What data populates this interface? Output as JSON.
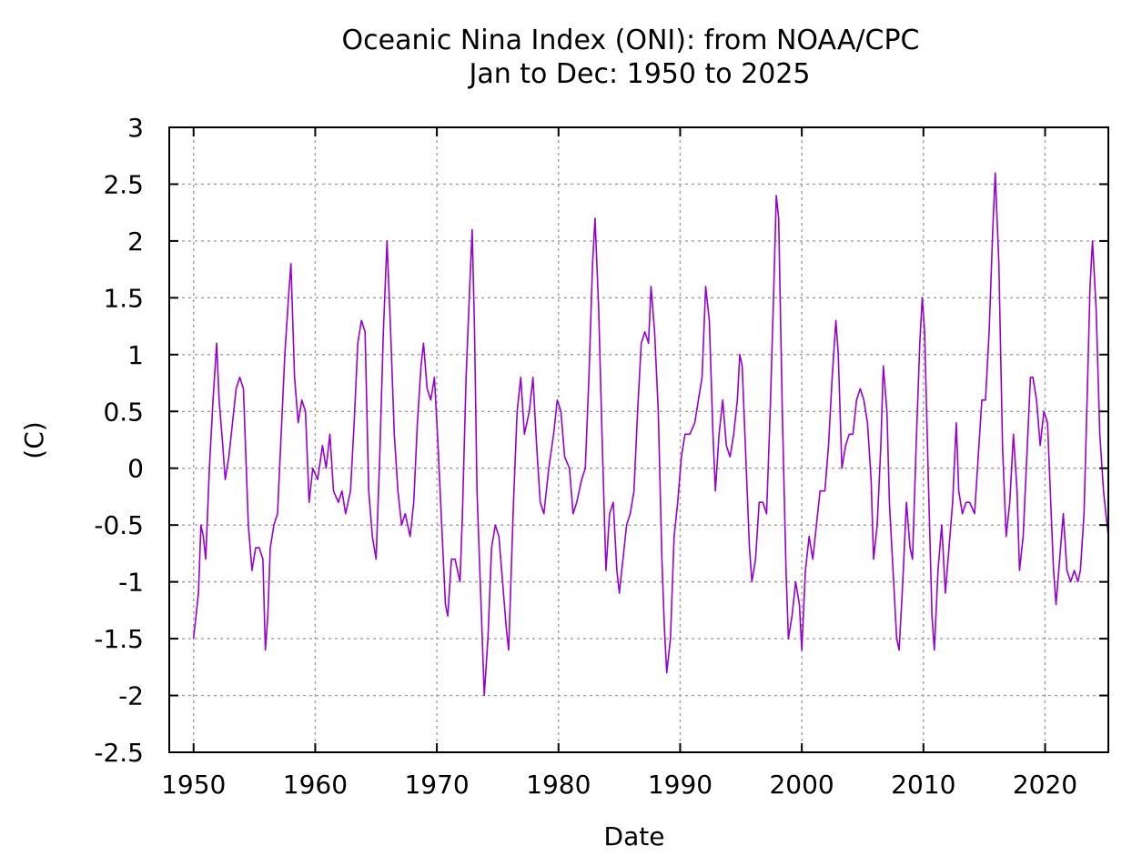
{
  "chart_data": {
    "type": "line",
    "title": "Oceanic Nina Index (ONI): from NOAA/CPC",
    "subtitle": "Jan to Dec: 1950 to 2025",
    "xlabel": "Date",
    "ylabel": "(C)",
    "xlim": [
      1948,
      2025.2
    ],
    "ylim": [
      -2.5,
      3
    ],
    "xticks": [
      1950,
      1960,
      1970,
      1980,
      1990,
      2000,
      2010,
      2020
    ],
    "yticks": [
      -2.5,
      -2,
      -1.5,
      -1,
      -0.5,
      0,
      0.5,
      1,
      1.5,
      2,
      2.5,
      3
    ],
    "grid": true,
    "legend": "none",
    "series": [
      {
        "name": "ONI",
        "color": "#9400d3",
        "points": [
          [
            1950.0,
            -1.5
          ],
          [
            1950.4,
            -1.1
          ],
          [
            1950.6,
            -0.5
          ],
          [
            1950.8,
            -0.6
          ],
          [
            1951.0,
            -0.8
          ],
          [
            1951.3,
            0.0
          ],
          [
            1951.6,
            0.6
          ],
          [
            1951.9,
            1.1
          ],
          [
            1952.1,
            0.6
          ],
          [
            1952.4,
            0.2
          ],
          [
            1952.6,
            -0.1
          ],
          [
            1952.9,
            0.1
          ],
          [
            1953.2,
            0.4
          ],
          [
            1953.5,
            0.7
          ],
          [
            1953.8,
            0.8
          ],
          [
            1954.1,
            0.7
          ],
          [
            1954.3,
            0.1
          ],
          [
            1954.5,
            -0.5
          ],
          [
            1954.8,
            -0.9
          ],
          [
            1955.1,
            -0.7
          ],
          [
            1955.4,
            -0.7
          ],
          [
            1955.7,
            -0.8
          ],
          [
            1955.9,
            -1.6
          ],
          [
            1956.1,
            -1.3
          ],
          [
            1956.3,
            -0.7
          ],
          [
            1956.6,
            -0.5
          ],
          [
            1956.9,
            -0.4
          ],
          [
            1957.2,
            0.3
          ],
          [
            1957.5,
            1.0
          ],
          [
            1957.8,
            1.5
          ],
          [
            1958.0,
            1.8
          ],
          [
            1958.3,
            0.8
          ],
          [
            1958.6,
            0.4
          ],
          [
            1958.9,
            0.6
          ],
          [
            1959.2,
            0.5
          ],
          [
            1959.5,
            -0.3
          ],
          [
            1959.8,
            0.0
          ],
          [
            1960.2,
            -0.1
          ],
          [
            1960.6,
            0.2
          ],
          [
            1960.9,
            0.0
          ],
          [
            1961.2,
            0.3
          ],
          [
            1961.5,
            -0.2
          ],
          [
            1961.9,
            -0.3
          ],
          [
            1962.2,
            -0.2
          ],
          [
            1962.5,
            -0.4
          ],
          [
            1962.9,
            -0.2
          ],
          [
            1963.2,
            0.4
          ],
          [
            1963.5,
            1.1
          ],
          [
            1963.8,
            1.3
          ],
          [
            1964.1,
            1.2
          ],
          [
            1964.4,
            -0.2
          ],
          [
            1964.7,
            -0.6
          ],
          [
            1965.0,
            -0.8
          ],
          [
            1965.3,
            0.1
          ],
          [
            1965.6,
            1.2
          ],
          [
            1965.9,
            2.0
          ],
          [
            1966.2,
            1.2
          ],
          [
            1966.5,
            0.3
          ],
          [
            1966.8,
            -0.2
          ],
          [
            1967.1,
            -0.5
          ],
          [
            1967.4,
            -0.4
          ],
          [
            1967.8,
            -0.6
          ],
          [
            1968.1,
            -0.3
          ],
          [
            1968.4,
            0.4
          ],
          [
            1968.7,
            0.9
          ],
          [
            1968.9,
            1.1
          ],
          [
            1969.2,
            0.7
          ],
          [
            1969.5,
            0.6
          ],
          [
            1969.8,
            0.8
          ],
          [
            1970.1,
            0.2
          ],
          [
            1970.4,
            -0.5
          ],
          [
            1970.7,
            -1.2
          ],
          [
            1970.9,
            -1.3
          ],
          [
            1971.2,
            -0.8
          ],
          [
            1971.5,
            -0.8
          ],
          [
            1971.9,
            -1.0
          ],
          [
            1972.1,
            -0.4
          ],
          [
            1972.4,
            0.8
          ],
          [
            1972.7,
            1.6
          ],
          [
            1972.9,
            2.1
          ],
          [
            1973.1,
            1.2
          ],
          [
            1973.3,
            -0.2
          ],
          [
            1973.6,
            -1.1
          ],
          [
            1973.9,
            -2.0
          ],
          [
            1974.2,
            -1.5
          ],
          [
            1974.5,
            -0.7
          ],
          [
            1974.8,
            -0.5
          ],
          [
            1975.1,
            -0.6
          ],
          [
            1975.4,
            -1.0
          ],
          [
            1975.7,
            -1.4
          ],
          [
            1975.9,
            -1.6
          ],
          [
            1976.3,
            -0.3
          ],
          [
            1976.6,
            0.5
          ],
          [
            1976.9,
            0.8
          ],
          [
            1977.2,
            0.3
          ],
          [
            1977.6,
            0.5
          ],
          [
            1977.9,
            0.8
          ],
          [
            1978.2,
            0.2
          ],
          [
            1978.5,
            -0.3
          ],
          [
            1978.8,
            -0.4
          ],
          [
            1979.2,
            0.0
          ],
          [
            1979.6,
            0.3
          ],
          [
            1979.9,
            0.6
          ],
          [
            1980.2,
            0.5
          ],
          [
            1980.5,
            0.1
          ],
          [
            1980.9,
            0.0
          ],
          [
            1981.2,
            -0.4
          ],
          [
            1981.5,
            -0.3
          ],
          [
            1981.9,
            -0.1
          ],
          [
            1982.2,
            0.0
          ],
          [
            1982.5,
            0.8
          ],
          [
            1982.8,
            1.8
          ],
          [
            1983.0,
            2.2
          ],
          [
            1983.3,
            1.4
          ],
          [
            1983.6,
            0.2
          ],
          [
            1983.9,
            -0.9
          ],
          [
            1984.2,
            -0.4
          ],
          [
            1984.5,
            -0.3
          ],
          [
            1984.8,
            -0.9
          ],
          [
            1985.0,
            -1.1
          ],
          [
            1985.3,
            -0.8
          ],
          [
            1985.6,
            -0.5
          ],
          [
            1985.9,
            -0.4
          ],
          [
            1986.2,
            -0.2
          ],
          [
            1986.5,
            0.5
          ],
          [
            1986.8,
            1.1
          ],
          [
            1987.1,
            1.2
          ],
          [
            1987.4,
            1.1
          ],
          [
            1987.6,
            1.6
          ],
          [
            1987.9,
            1.2
          ],
          [
            1988.2,
            0.5
          ],
          [
            1988.5,
            -0.8
          ],
          [
            1988.7,
            -1.4
          ],
          [
            1988.9,
            -1.8
          ],
          [
            1989.2,
            -1.5
          ],
          [
            1989.5,
            -0.6
          ],
          [
            1989.8,
            -0.3
          ],
          [
            1990.1,
            0.1
          ],
          [
            1990.4,
            0.3
          ],
          [
            1990.8,
            0.3
          ],
          [
            1991.2,
            0.4
          ],
          [
            1991.5,
            0.6
          ],
          [
            1991.8,
            0.8
          ],
          [
            1992.1,
            1.6
          ],
          [
            1992.4,
            1.3
          ],
          [
            1992.7,
            0.3
          ],
          [
            1992.9,
            -0.2
          ],
          [
            1993.2,
            0.3
          ],
          [
            1993.5,
            0.6
          ],
          [
            1993.8,
            0.2
          ],
          [
            1994.1,
            0.1
          ],
          [
            1994.4,
            0.3
          ],
          [
            1994.7,
            0.6
          ],
          [
            1994.9,
            1.0
          ],
          [
            1995.1,
            0.9
          ],
          [
            1995.4,
            0.1
          ],
          [
            1995.7,
            -0.7
          ],
          [
            1995.9,
            -1.0
          ],
          [
            1996.2,
            -0.8
          ],
          [
            1996.5,
            -0.3
          ],
          [
            1996.8,
            -0.3
          ],
          [
            1997.1,
            -0.4
          ],
          [
            1997.4,
            0.5
          ],
          [
            1997.7,
            1.6
          ],
          [
            1997.9,
            2.4
          ],
          [
            1998.1,
            2.2
          ],
          [
            1998.4,
            0.5
          ],
          [
            1998.7,
            -0.9
          ],
          [
            1998.9,
            -1.5
          ],
          [
            1999.2,
            -1.3
          ],
          [
            1999.5,
            -1.0
          ],
          [
            1999.8,
            -1.2
          ],
          [
            2000.0,
            -1.6
          ],
          [
            2000.3,
            -0.9
          ],
          [
            2000.6,
            -0.6
          ],
          [
            2000.9,
            -0.8
          ],
          [
            2001.2,
            -0.5
          ],
          [
            2001.5,
            -0.2
          ],
          [
            2001.9,
            -0.2
          ],
          [
            2002.2,
            0.2
          ],
          [
            2002.5,
            0.8
          ],
          [
            2002.8,
            1.3
          ],
          [
            2003.0,
            1.0
          ],
          [
            2003.3,
            0.0
          ],
          [
            2003.6,
            0.2
          ],
          [
            2003.9,
            0.3
          ],
          [
            2004.2,
            0.3
          ],
          [
            2004.5,
            0.6
          ],
          [
            2004.8,
            0.7
          ],
          [
            2005.1,
            0.6
          ],
          [
            2005.4,
            0.4
          ],
          [
            2005.7,
            -0.1
          ],
          [
            2005.9,
            -0.8
          ],
          [
            2006.2,
            -0.5
          ],
          [
            2006.5,
            0.2
          ],
          [
            2006.7,
            0.9
          ],
          [
            2007.0,
            0.5
          ],
          [
            2007.2,
            -0.3
          ],
          [
            2007.5,
            -0.9
          ],
          [
            2007.8,
            -1.5
          ],
          [
            2008.0,
            -1.6
          ],
          [
            2008.3,
            -1.0
          ],
          [
            2008.6,
            -0.3
          ],
          [
            2008.9,
            -0.7
          ],
          [
            2009.1,
            -0.8
          ],
          [
            2009.4,
            0.2
          ],
          [
            2009.7,
            1.1
          ],
          [
            2009.9,
            1.5
          ],
          [
            2010.1,
            1.2
          ],
          [
            2010.4,
            -0.1
          ],
          [
            2010.7,
            -1.3
          ],
          [
            2010.9,
            -1.6
          ],
          [
            2011.2,
            -0.9
          ],
          [
            2011.5,
            -0.5
          ],
          [
            2011.8,
            -1.1
          ],
          [
            2012.1,
            -0.7
          ],
          [
            2012.4,
            -0.3
          ],
          [
            2012.7,
            0.4
          ],
          [
            2012.9,
            -0.2
          ],
          [
            2013.2,
            -0.4
          ],
          [
            2013.5,
            -0.3
          ],
          [
            2013.8,
            -0.3
          ],
          [
            2014.2,
            -0.4
          ],
          [
            2014.5,
            0.1
          ],
          [
            2014.8,
            0.6
          ],
          [
            2015.1,
            0.6
          ],
          [
            2015.4,
            1.2
          ],
          [
            2015.7,
            2.1
          ],
          [
            2015.9,
            2.6
          ],
          [
            2016.2,
            1.8
          ],
          [
            2016.5,
            0.2
          ],
          [
            2016.8,
            -0.6
          ],
          [
            2017.1,
            -0.3
          ],
          [
            2017.4,
            0.3
          ],
          [
            2017.7,
            -0.2
          ],
          [
            2017.9,
            -0.9
          ],
          [
            2018.2,
            -0.6
          ],
          [
            2018.5,
            0.1
          ],
          [
            2018.8,
            0.8
          ],
          [
            2019.0,
            0.8
          ],
          [
            2019.3,
            0.6
          ],
          [
            2019.6,
            0.2
          ],
          [
            2019.9,
            0.5
          ],
          [
            2020.2,
            0.4
          ],
          [
            2020.5,
            -0.4
          ],
          [
            2020.7,
            -0.9
          ],
          [
            2020.9,
            -1.2
          ],
          [
            2021.2,
            -0.8
          ],
          [
            2021.5,
            -0.4
          ],
          [
            2021.8,
            -0.9
          ],
          [
            2022.1,
            -1.0
          ],
          [
            2022.4,
            -0.9
          ],
          [
            2022.7,
            -1.0
          ],
          [
            2022.9,
            -0.9
          ],
          [
            2023.2,
            -0.4
          ],
          [
            2023.5,
            0.8
          ],
          [
            2023.7,
            1.6
          ],
          [
            2023.9,
            2.0
          ],
          [
            2024.2,
            1.4
          ],
          [
            2024.5,
            0.3
          ],
          [
            2024.8,
            -0.2
          ],
          [
            2025.0,
            -0.4
          ],
          [
            2025.2,
            -0.6
          ]
        ]
      }
    ]
  }
}
